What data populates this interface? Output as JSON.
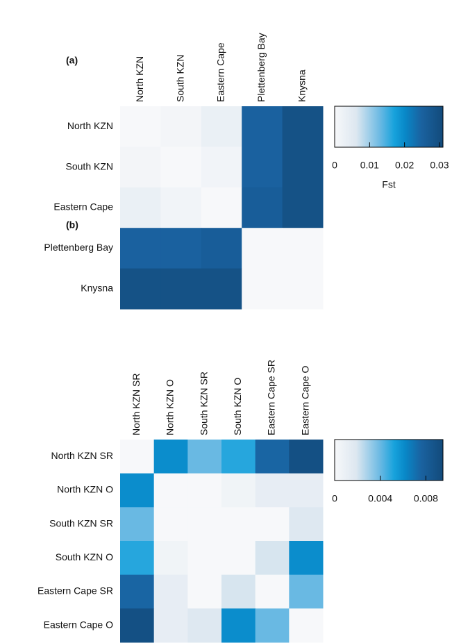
{
  "chart_data": [
    {
      "type": "heatmap",
      "title": "(a)",
      "x": [
        "North KZN",
        "South KZN",
        "Eastern Cape",
        "Plettenberg Bay",
        "Knysna"
      ],
      "y": [
        "North KZN",
        "South KZN",
        "Eastern Cape",
        "Plettenberg Bay",
        "Knysna"
      ],
      "values": [
        [
          0,
          0.001,
          0.003,
          0.025,
          0.029
        ],
        [
          0.001,
          0,
          0.0015,
          0.025,
          0.029
        ],
        [
          0.003,
          0.0015,
          0,
          0.026,
          0.029
        ],
        [
          0.025,
          0.025,
          0.026,
          0,
          0
        ],
        [
          0.029,
          0.029,
          0.029,
          0,
          0
        ]
      ],
      "zlim": [
        0,
        0.031
      ],
      "zticks": [
        0,
        0.01,
        0.02,
        0.03
      ],
      "colorbar_label": "Fst",
      "colorscale": [
        [
          0,
          "#f7f8fa"
        ],
        [
          0.2,
          "#dde7f0"
        ],
        [
          0.42,
          "#6ab9e3"
        ],
        [
          0.55,
          "#17a2dc"
        ],
        [
          0.65,
          "#0888c8"
        ],
        [
          0.8,
          "#1a62a0"
        ],
        [
          1,
          "#124a7a"
        ]
      ]
    },
    {
      "type": "heatmap",
      "title": "(b)",
      "x": [
        "North KZN SR",
        "North KZN O",
        "South KZN SR",
        "South KZN O",
        "Eastern Cape SR",
        "Eastern Cape O"
      ],
      "y": [
        "North KZN SR",
        "North KZN O",
        "South KZN SR",
        "South KZN O",
        "Eastern Cape SR",
        "Eastern Cape O"
      ],
      "values": [
        [
          0,
          0.006,
          0.004,
          0.005,
          0.0075,
          0.009
        ],
        [
          0.006,
          0,
          0,
          0.0005,
          0.0012,
          0.0012
        ],
        [
          0.004,
          0,
          0,
          0,
          0,
          0.0018
        ],
        [
          0.005,
          0.0005,
          0,
          0,
          0.002,
          0.006
        ],
        [
          0.0075,
          0.0012,
          0,
          0.002,
          0,
          0.004
        ],
        [
          0.009,
          0.0012,
          0.0018,
          0.006,
          0.004,
          0
        ]
      ],
      "zlim": [
        0,
        0.0095
      ],
      "zticks": [
        0,
        0.004,
        0.008
      ],
      "colorscale": [
        [
          0,
          "#f7f8fa"
        ],
        [
          0.2,
          "#dde7f0"
        ],
        [
          0.42,
          "#6ab9e3"
        ],
        [
          0.55,
          "#17a2dc"
        ],
        [
          0.65,
          "#0888c8"
        ],
        [
          0.8,
          "#1a62a0"
        ],
        [
          1,
          "#124a7a"
        ]
      ]
    }
  ]
}
